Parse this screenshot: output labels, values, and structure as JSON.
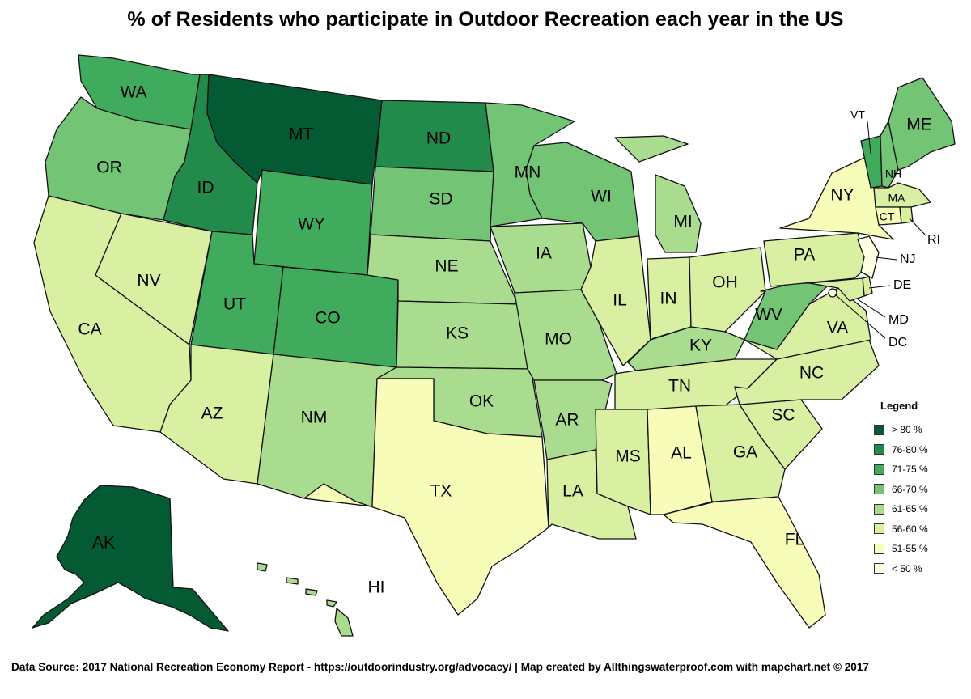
{
  "title": "% of Residents who participate in Outdoor Recreation each year in the US",
  "footer": "Data Source: 2017 National Recreation Economy Report - https://outdoorindustry.org/advocacy/ | Map created by Allthingswaterproof.com with mapchart.net  © 2017",
  "legend": {
    "title": "Legend",
    "bins": [
      {
        "label": "> 80 %",
        "color": "#045a32"
      },
      {
        "label": "76-80 %",
        "color": "#228a4a"
      },
      {
        "label": "71-75 %",
        "color": "#41ab5d"
      },
      {
        "label": "66-70 %",
        "color": "#74c476"
      },
      {
        "label": "61-65 %",
        "color": "#a9dc8f"
      },
      {
        "label": "56-60 %",
        "color": "#d9f0a3"
      },
      {
        "label": "51-55 %",
        "color": "#f7fcb9"
      },
      {
        "label": "< 50 %",
        "color": "#ffffe5"
      }
    ]
  },
  "states": [
    {
      "abbr": "WA",
      "bin": "71-75 %"
    },
    {
      "abbr": "OR",
      "bin": "66-70 %"
    },
    {
      "abbr": "CA",
      "bin": "56-60 %"
    },
    {
      "abbr": "NV",
      "bin": "56-60 %"
    },
    {
      "abbr": "ID",
      "bin": "76-80 %"
    },
    {
      "abbr": "MT",
      "bin": "> 80 %"
    },
    {
      "abbr": "WY",
      "bin": "71-75 %"
    },
    {
      "abbr": "UT",
      "bin": "71-75 %"
    },
    {
      "abbr": "CO",
      "bin": "71-75 %"
    },
    {
      "abbr": "AZ",
      "bin": "56-60 %"
    },
    {
      "abbr": "NM",
      "bin": "61-65 %"
    },
    {
      "abbr": "ND",
      "bin": "76-80 %"
    },
    {
      "abbr": "SD",
      "bin": "66-70 %"
    },
    {
      "abbr": "NE",
      "bin": "61-65 %"
    },
    {
      "abbr": "KS",
      "bin": "61-65 %"
    },
    {
      "abbr": "OK",
      "bin": "61-65 %"
    },
    {
      "abbr": "TX",
      "bin": "51-55 %"
    },
    {
      "abbr": "MN",
      "bin": "66-70 %"
    },
    {
      "abbr": "IA",
      "bin": "61-65 %"
    },
    {
      "abbr": "MO",
      "bin": "61-65 %"
    },
    {
      "abbr": "AR",
      "bin": "61-65 %"
    },
    {
      "abbr": "LA",
      "bin": "56-60 %"
    },
    {
      "abbr": "WI",
      "bin": "66-70 %"
    },
    {
      "abbr": "IL",
      "bin": "56-60 %"
    },
    {
      "abbr": "MI",
      "bin": "61-65 %"
    },
    {
      "abbr": "IN",
      "bin": "56-60 %"
    },
    {
      "abbr": "OH",
      "bin": "56-60 %"
    },
    {
      "abbr": "KY",
      "bin": "61-65 %"
    },
    {
      "abbr": "TN",
      "bin": "56-60 %"
    },
    {
      "abbr": "MS",
      "bin": "56-60 %"
    },
    {
      "abbr": "AL",
      "bin": "51-55 %"
    },
    {
      "abbr": "GA",
      "bin": "56-60 %"
    },
    {
      "abbr": "FL",
      "bin": "51-55 %"
    },
    {
      "abbr": "SC",
      "bin": "56-60 %"
    },
    {
      "abbr": "NC",
      "bin": "56-60 %"
    },
    {
      "abbr": "VA",
      "bin": "56-60 %"
    },
    {
      "abbr": "WV",
      "bin": "66-70 %"
    },
    {
      "abbr": "PA",
      "bin": "56-60 %"
    },
    {
      "abbr": "NY",
      "bin": "51-55 %"
    },
    {
      "abbr": "VT",
      "bin": "71-75 %"
    },
    {
      "abbr": "NH",
      "bin": "66-70 %"
    },
    {
      "abbr": "ME",
      "bin": "66-70 %"
    },
    {
      "abbr": "MA",
      "bin": "56-60 %"
    },
    {
      "abbr": "CT",
      "bin": "51-55 %"
    },
    {
      "abbr": "RI",
      "bin": "56-60 %"
    },
    {
      "abbr": "NJ",
      "bin": "< 50 %"
    },
    {
      "abbr": "DE",
      "bin": "56-60 %"
    },
    {
      "abbr": "MD",
      "bin": "56-60 %"
    },
    {
      "abbr": "DC",
      "bin": "< 50 %"
    },
    {
      "abbr": "AK",
      "bin": "> 80 %"
    },
    {
      "abbr": "HI",
      "bin": "61-65 %"
    }
  ]
}
